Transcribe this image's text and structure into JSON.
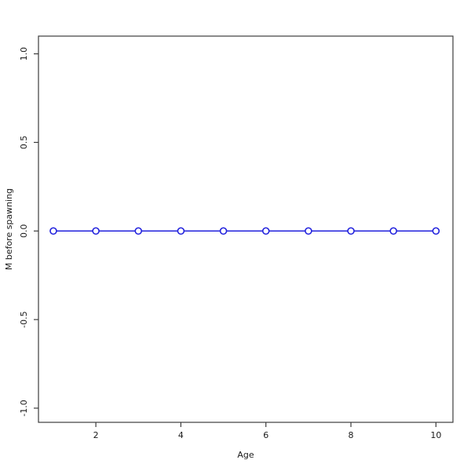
{
  "figure": {
    "background": "#ffffff"
  },
  "chart_data": {
    "type": "line",
    "title": "",
    "xlabel": "Age",
    "ylabel": "M before spawning",
    "x": [
      1,
      2,
      3,
      4,
      5,
      6,
      7,
      8,
      9,
      10
    ],
    "y": [
      0,
      0,
      0,
      0,
      0,
      0,
      0,
      0,
      0,
      0
    ],
    "series": [
      {
        "name": "M before spawning",
        "values": [
          0,
          0,
          0,
          0,
          0,
          0,
          0,
          0,
          0,
          0
        ]
      }
    ],
    "xlim": [
      0.65,
      10.4
    ],
    "ylim": [
      -1.08,
      1.1
    ],
    "xticks": [
      2,
      4,
      6,
      8,
      10
    ],
    "xtick_labels": [
      "2",
      "4",
      "6",
      "8",
      "10"
    ],
    "yticks": [
      -1.0,
      -0.5,
      0.0,
      0.5,
      1.0
    ],
    "ytick_labels": [
      "-1.0",
      "-0.5",
      "0.0",
      "0.5",
      "1.0"
    ],
    "grid": false,
    "legend": "none",
    "marker": "open-circle",
    "marker_radius": 4,
    "line_color": "#2222DD",
    "marker_fill": "#ffffff",
    "axis_color": "#3d3d3d",
    "text_color": "#1a1a1a"
  }
}
